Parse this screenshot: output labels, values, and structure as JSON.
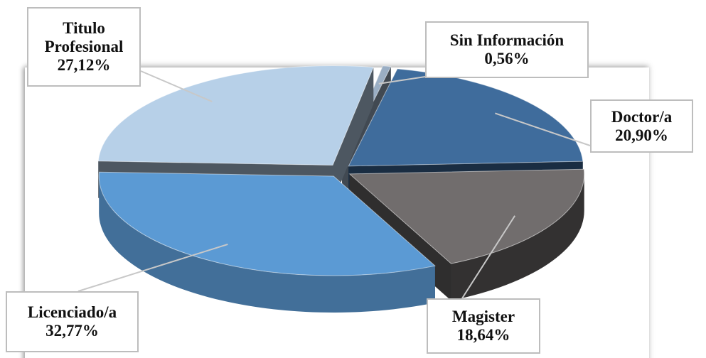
{
  "chart_data": {
    "type": "pie3d",
    "categories": [
      "Sin Información",
      "Doctor/a",
      "Magister",
      "Licenciado/a",
      "Titulo Profesional"
    ],
    "values": [
      0.56,
      20.9,
      18.64,
      32.77,
      27.12
    ],
    "value_labels": [
      "0,56%",
      "20,90%",
      "18,64%",
      "32,77%",
      "27,12%"
    ],
    "colors": [
      "#9aaec4",
      "#3f6c9c",
      "#716d6d",
      "#5b9ad4",
      "#b7d0e8"
    ]
  }
}
